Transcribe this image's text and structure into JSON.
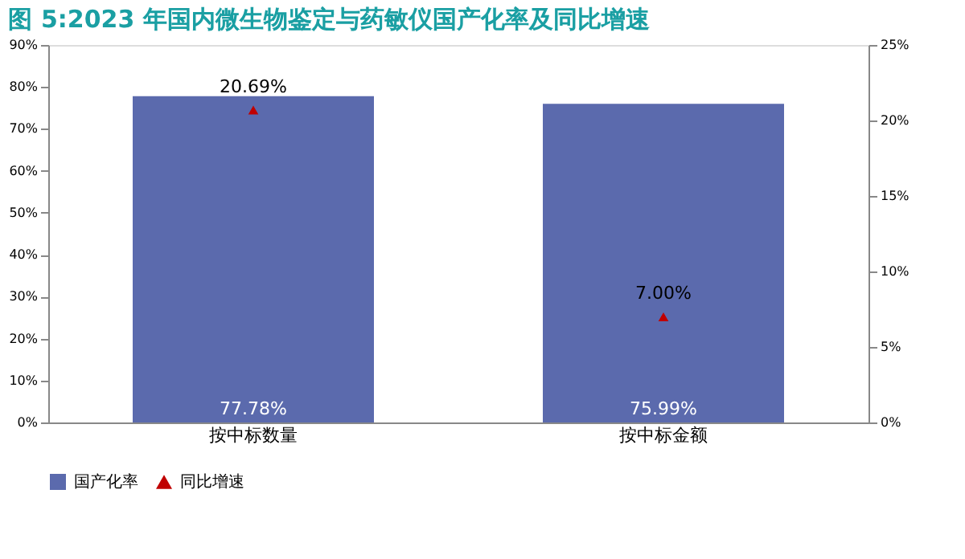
{
  "chart_data": {
    "type": "bar",
    "title": "图 5:2023 年国内微生物鉴定与药敏仪国产化率及同比增速",
    "categories": [
      "按中标数量",
      "按中标金额"
    ],
    "series": [
      {
        "name": "国产化率",
        "color": "#5b6aad",
        "values": [
          77.78,
          75.99
        ],
        "value_labels": [
          "77.78%",
          "75.99%"
        ]
      },
      {
        "name": "同比增速",
        "type": "scatter",
        "axis": "y2",
        "marker": "triangle",
        "color": "#c00000",
        "values": [
          20.69,
          7.0
        ],
        "value_labels": [
          "20.69%",
          "7.00%"
        ]
      }
    ],
    "ylim": [
      0,
      90
    ],
    "yticks": [
      {
        "value": 0,
        "label": "0%"
      },
      {
        "value": 10,
        "label": "10%"
      },
      {
        "value": 20,
        "label": "20%"
      },
      {
        "value": 30,
        "label": "30%"
      },
      {
        "value": 40,
        "label": "40%"
      },
      {
        "value": 50,
        "label": "50%"
      },
      {
        "value": 60,
        "label": "60%"
      },
      {
        "value": 70,
        "label": "70%"
      },
      {
        "value": 80,
        "label": "80%"
      },
      {
        "value": 90,
        "label": "90%"
      }
    ],
    "y2lim": [
      0,
      25
    ],
    "y2ticks": [
      {
        "value": 0,
        "label": "0%"
      },
      {
        "value": 5,
        "label": "5%"
      },
      {
        "value": 10,
        "label": "10%"
      },
      {
        "value": 15,
        "label": "15%"
      },
      {
        "value": 20,
        "label": "20%"
      },
      {
        "value": 25,
        "label": "25%"
      }
    ],
    "legend": "bottom",
    "grid": false
  }
}
